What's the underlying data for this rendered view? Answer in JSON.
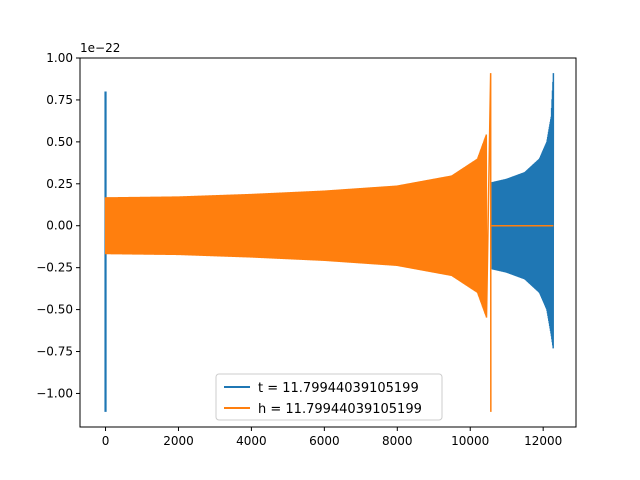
{
  "chart_data": {
    "type": "line",
    "title": "",
    "xlabel": "",
    "ylabel": "",
    "y_scale_label": "1e−22",
    "xlim": [
      -700,
      12900
    ],
    "ylim": [
      -1.2,
      1.0
    ],
    "x_ticks": [
      0,
      2000,
      4000,
      6000,
      8000,
      10000,
      12000
    ],
    "x_tick_labels": [
      "0",
      "2000",
      "4000",
      "6000",
      "8000",
      "10000",
      "12000"
    ],
    "y_ticks": [
      -1.0,
      -0.75,
      -0.5,
      -0.25,
      0.0,
      0.25,
      0.5,
      0.75,
      1.0
    ],
    "y_tick_labels": [
      "−1.00",
      "−0.75",
      "−0.50",
      "−0.25",
      "0.00",
      "0.25",
      "0.50",
      "0.75",
      "1.00"
    ],
    "grid": false,
    "legend_position": "lower-center",
    "series": [
      {
        "name": "t = 11.79944039105199",
        "color": "#1f77b4",
        "x_range": [
          0,
          12280
        ],
        "spike_at_start": {
          "x": 0,
          "max": 0.8,
          "min": -1.11
        },
        "envelope": [
          {
            "x": 10600,
            "upper": 0.26,
            "lower": -0.26
          },
          {
            "x": 11000,
            "upper": 0.28,
            "lower": -0.28
          },
          {
            "x": 11500,
            "upper": 0.32,
            "lower": -0.32
          },
          {
            "x": 11900,
            "upper": 0.4,
            "lower": -0.4
          },
          {
            "x": 12100,
            "upper": 0.5,
            "lower": -0.5
          },
          {
            "x": 12220,
            "upper": 0.65,
            "lower": -0.65
          },
          {
            "x": 12280,
            "upper": 0.91,
            "lower": -0.74
          }
        ],
        "flat_after": null
      },
      {
        "name": "h = 11.79944039105199",
        "color": "#ff7f0e",
        "x_range": [
          0,
          12280
        ],
        "envelope": [
          {
            "x": 0,
            "upper": 0.17,
            "lower": -0.17
          },
          {
            "x": 2000,
            "upper": 0.175,
            "lower": -0.175
          },
          {
            "x": 4000,
            "upper": 0.19,
            "lower": -0.19
          },
          {
            "x": 6000,
            "upper": 0.21,
            "lower": -0.21
          },
          {
            "x": 8000,
            "upper": 0.24,
            "lower": -0.24
          },
          {
            "x": 9500,
            "upper": 0.3,
            "lower": -0.3
          },
          {
            "x": 10200,
            "upper": 0.4,
            "lower": -0.4
          },
          {
            "x": 10450,
            "upper": 0.55,
            "lower": -0.55
          },
          {
            "x": 10560,
            "upper": 0.91,
            "lower": -1.11
          }
        ],
        "flat_after": {
          "x_start": 10580,
          "x_end": 12280,
          "value": 0.0
        }
      }
    ]
  }
}
